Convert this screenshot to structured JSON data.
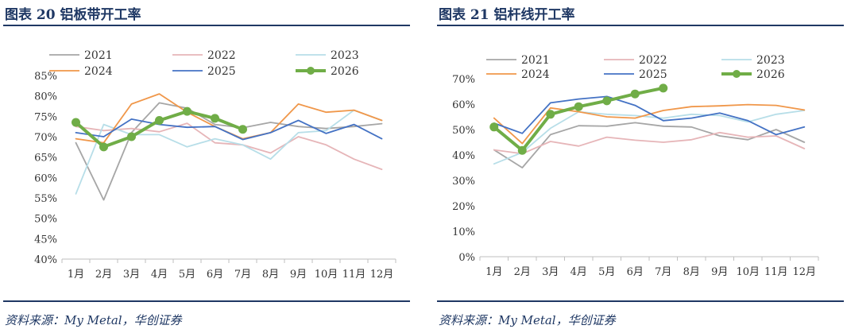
{
  "figures": [
    {
      "title": "图表 20  铝板带开工率",
      "source": "资料来源：My Metal，华创证券"
    },
    {
      "title": "图表 21  铝杆线开工率",
      "source": "资料来源：My Metal，华创证券"
    }
  ],
  "chart_data": [
    {
      "type": "line",
      "title": "",
      "xlabel": "",
      "ylabel": "",
      "grid": false,
      "legend": "top",
      "categories": [
        "1月",
        "2月",
        "3月",
        "4月",
        "5月",
        "6月",
        "7月",
        "8月",
        "9月",
        "10月",
        "11月",
        "12月"
      ],
      "yticks": [
        "40%",
        "45%",
        "50%",
        "55%",
        "60%",
        "65%",
        "70%",
        "75%",
        "80%",
        "85%"
      ],
      "ylim": [
        40,
        85
      ],
      "series": [
        {
          "name": "2021",
          "color": "#a6a6a6",
          "values": [
            68.5,
            54.5,
            71.0,
            78.3,
            77.0,
            73.0,
            72.2,
            73.5,
            72.5,
            72.0,
            72.5,
            73.2
          ]
        },
        {
          "name": "2022",
          "color": "#e6b5b8",
          "values": [
            72.5,
            71.5,
            72.0,
            71.2,
            73.3,
            68.5,
            68.0,
            66.0,
            70.0,
            68.0,
            64.5,
            62.0
          ]
        },
        {
          "name": "2023",
          "color": "#b7dee8",
          "values": [
            56.0,
            73.0,
            70.5,
            70.5,
            67.5,
            69.5,
            68.0,
            64.5,
            71.0,
            71.5,
            76.5,
            74.0
          ]
        },
        {
          "name": "2024",
          "color": "#f0974a",
          "values": [
            69.5,
            68.5,
            78.0,
            80.5,
            76.0,
            72.5,
            69.5,
            71.0,
            78.0,
            76.0,
            76.5,
            74.0
          ]
        },
        {
          "name": "2025",
          "color": "#4472c4",
          "values": [
            71.0,
            70.0,
            74.3,
            73.0,
            72.3,
            72.5,
            69.3,
            71.0,
            74.0,
            70.8,
            73.0,
            69.5
          ]
        },
        {
          "name": "2026",
          "color": "#70ad47",
          "values": [
            73.5,
            67.5,
            70.0,
            74.0,
            76.2,
            74.5,
            71.8,
            null,
            null,
            null,
            null,
            null
          ]
        }
      ]
    },
    {
      "type": "line",
      "title": "",
      "xlabel": "",
      "ylabel": "",
      "grid": false,
      "legend": "top",
      "categories": [
        "1月",
        "2月",
        "3月",
        "4月",
        "5月",
        "6月",
        "7月",
        "8月",
        "9月",
        "10月",
        "11月",
        "12月"
      ],
      "yticks": [
        "0%",
        "10%",
        "20%",
        "30%",
        "40%",
        "50%",
        "60%",
        "70%"
      ],
      "ylim": [
        0,
        70
      ],
      "series": [
        {
          "name": "2021",
          "color": "#a6a6a6",
          "values": [
            42.0,
            35.0,
            48.0,
            51.5,
            51.3,
            52.7,
            51.3,
            51.0,
            47.5,
            46.0,
            50.0,
            45.0
          ]
        },
        {
          "name": "2022",
          "color": "#e6b5b8",
          "values": [
            42.0,
            40.5,
            45.3,
            43.5,
            47.0,
            45.8,
            45.0,
            46.0,
            48.8,
            47.0,
            47.5,
            42.5
          ]
        },
        {
          "name": "2023",
          "color": "#b7dee8",
          "values": [
            36.5,
            41.0,
            50.5,
            57.0,
            56.0,
            55.5,
            54.5,
            56.0,
            55.5,
            53.0,
            56.0,
            57.5
          ]
        },
        {
          "name": "2024",
          "color": "#f0974a",
          "values": [
            54.5,
            44.5,
            58.5,
            57.0,
            55.0,
            54.5,
            57.5,
            59.0,
            59.3,
            59.8,
            59.5,
            57.7
          ]
        },
        {
          "name": "2025",
          "color": "#4472c4",
          "values": [
            52.5,
            48.5,
            60.5,
            62.0,
            63.0,
            59.5,
            53.5,
            54.5,
            56.5,
            53.5,
            48.0,
            51.0
          ]
        },
        {
          "name": "2026",
          "color": "#70ad47",
          "values": [
            51.0,
            41.8,
            56.0,
            59.0,
            61.3,
            64.0,
            66.3,
            null,
            null,
            null,
            null,
            null
          ]
        }
      ]
    }
  ]
}
